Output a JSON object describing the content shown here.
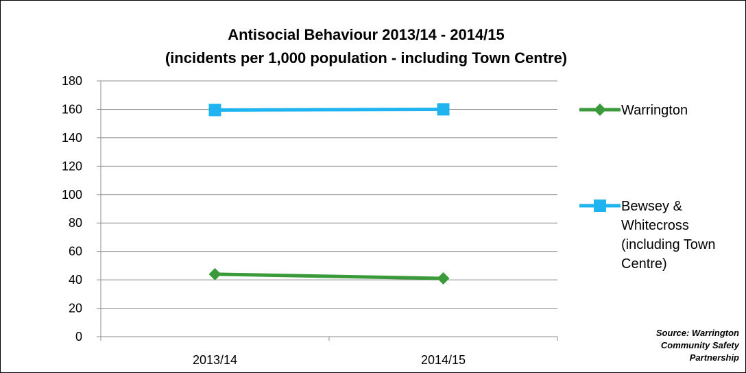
{
  "chart_data": {
    "type": "line",
    "title_lines": [
      "Antisocial Behaviour 2013/14 - 2014/15",
      "(incidents per 1,000 population - including Town Centre)"
    ],
    "categories": [
      "2013/14",
      "2014/15"
    ],
    "ylim": [
      0,
      180
    ],
    "yticks": [
      0,
      20,
      40,
      60,
      80,
      100,
      120,
      140,
      160,
      180
    ],
    "grid": true,
    "legend_position": "right",
    "series": [
      {
        "name": "Warrington",
        "legend_lines": [
          "Warrington"
        ],
        "values": [
          44,
          41
        ],
        "color": "#3a9a3a",
        "marker": "diamond"
      },
      {
        "name": "Bewsey & Whitecross (including Town Centre)",
        "legend_lines": [
          "Bewsey &",
          "Whitecross",
          "(including Town",
          "Centre)"
        ],
        "values": [
          159.5,
          160
        ],
        "color": "#1fb4f0",
        "marker": "square"
      }
    ],
    "source_lines": [
      "Source: Warrington",
      "Community Safety",
      "Partnership"
    ]
  }
}
